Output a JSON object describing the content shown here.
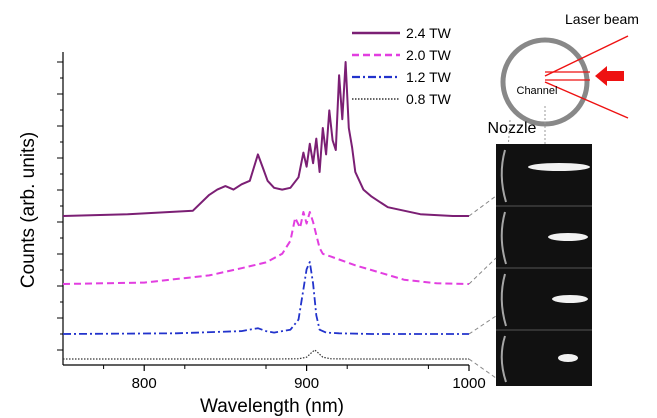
{
  "chart_data": {
    "type": "line",
    "xlabel": "Wavelength (nm)",
    "ylabel": "Counts (arb. units)",
    "xlim": [
      750,
      1000
    ],
    "x_ticks": [
      "800",
      "900",
      "1000"
    ],
    "legend_placement": "top",
    "series": [
      {
        "name": "2.4 TW",
        "color": "#7b1f74",
        "style": "solid",
        "x": [
          750,
          790,
          830,
          840,
          845,
          850,
          855,
          860,
          865,
          870,
          873,
          876,
          880,
          885,
          890,
          895,
          898,
          900,
          902,
          904,
          906,
          908,
          910,
          912,
          914,
          916,
          918,
          920,
          922,
          924,
          926,
          928,
          930,
          935,
          940,
          945,
          950,
          960,
          970,
          980,
          990,
          1000
        ],
        "y": [
          0,
          0.02,
          0.06,
          0.24,
          0.3,
          0.34,
          0.3,
          0.36,
          0.4,
          0.7,
          0.55,
          0.4,
          0.32,
          0.3,
          0.32,
          0.44,
          0.72,
          0.56,
          0.82,
          0.6,
          0.88,
          0.5,
          1.0,
          0.7,
          1.2,
          0.86,
          0.75,
          1.6,
          1.1,
          1.75,
          1.0,
          0.78,
          0.5,
          0.3,
          0.22,
          0.16,
          0.1,
          0.06,
          0.02,
          0.01,
          0,
          0
        ]
      },
      {
        "name": "2.0 TW",
        "color": "#e23ee0",
        "style": "dashed",
        "x": [
          750,
          800,
          840,
          860,
          875,
          885,
          890,
          893,
          896,
          898,
          900,
          902,
          904,
          906,
          908,
          910,
          915,
          920,
          930,
          945,
          960,
          980,
          1000
        ],
        "y": [
          0,
          0.02,
          0.12,
          0.22,
          0.3,
          0.42,
          0.6,
          0.92,
          0.78,
          1.0,
          0.84,
          1.0,
          0.86,
          0.68,
          0.5,
          0.42,
          0.38,
          0.34,
          0.26,
          0.16,
          0.06,
          0.01,
          0
        ]
      },
      {
        "name": "1.2 TW",
        "color": "#2233cc",
        "style": "dashdot",
        "x": [
          750,
          820,
          860,
          870,
          875,
          880,
          890,
          895,
          898,
          900,
          902,
          904,
          906,
          908,
          912,
          920,
          940,
          970,
          1000
        ],
        "y": [
          0,
          0.01,
          0.04,
          0.08,
          0.04,
          0.02,
          0.06,
          0.2,
          0.62,
          0.9,
          1.0,
          0.7,
          0.26,
          0.06,
          0.02,
          0.01,
          0,
          0,
          0
        ]
      },
      {
        "name": "0.8 TW",
        "color": "#333333",
        "style": "dotted",
        "x": [
          750,
          880,
          895,
          900,
          903,
          905,
          907,
          910,
          915,
          930,
          1000
        ],
        "y": [
          0,
          0,
          0.02,
          0.2,
          0.7,
          1.0,
          0.7,
          0.2,
          0.02,
          0,
          0
        ]
      }
    ]
  },
  "inset": {
    "laser_label": "Laser beam",
    "channel_label": "Channel",
    "nozzle_label": "Nozzle"
  },
  "colors": {
    "axis": "#000000",
    "arrow": "#ee1111",
    "circle": "#888888",
    "panel_bg": "#111111"
  }
}
